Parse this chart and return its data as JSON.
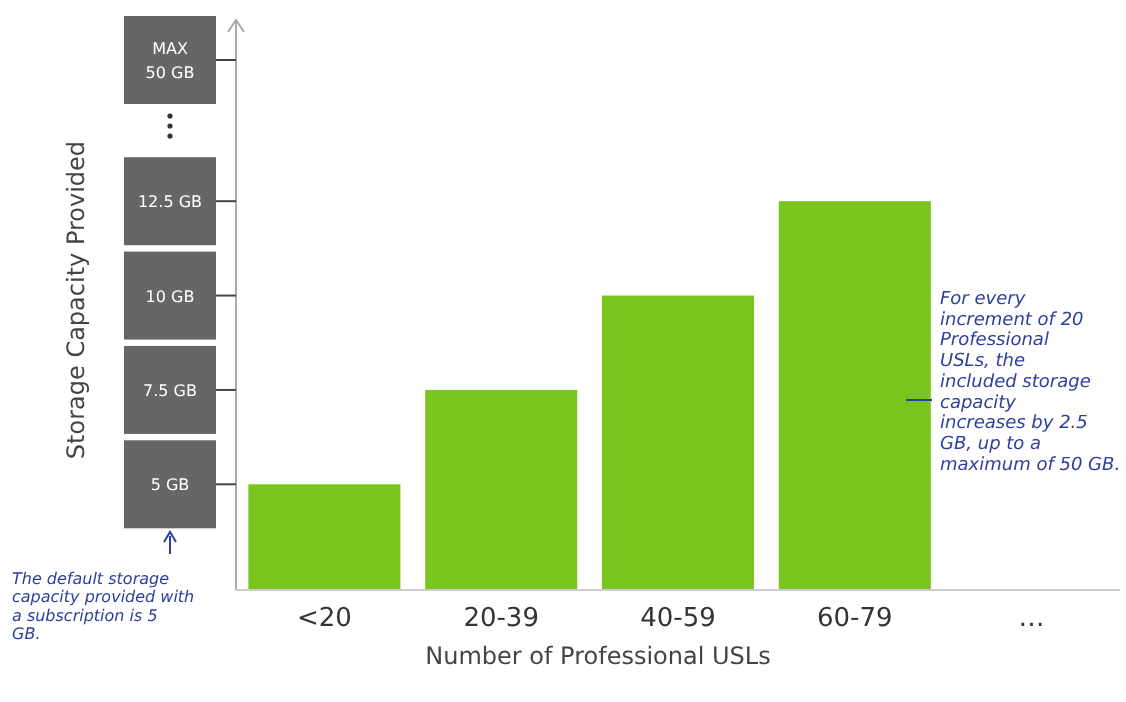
{
  "chart_data": {
    "type": "bar",
    "xlabel": "Number of Professional USLs",
    "ylabel": "Storage Capacity Provided",
    "categories": [
      "<20",
      "20-39",
      "40-59",
      "60-79",
      "…"
    ],
    "values": [
      5,
      7.5,
      10,
      12.5,
      null
    ],
    "color": "#7ac41f",
    "ylim": [
      2.2,
      17.3
    ],
    "yticks": [
      {
        "value": 5,
        "label": "5 GB"
      },
      {
        "value": 7.5,
        "label": "7.5 GB"
      },
      {
        "value": 10,
        "label": "10 GB"
      },
      {
        "value": 12.5,
        "label": "12.5 GB"
      }
    ],
    "grid": false,
    "annotations": [
      "MAX 50 GB",
      "For every increment of 20 Professional USLs, the included storage capacity increases by 2.5 GB, up to a maximum of 50 GB.",
      "The default storage capacity provided with a subscription is 5 GB."
    ]
  }
}
